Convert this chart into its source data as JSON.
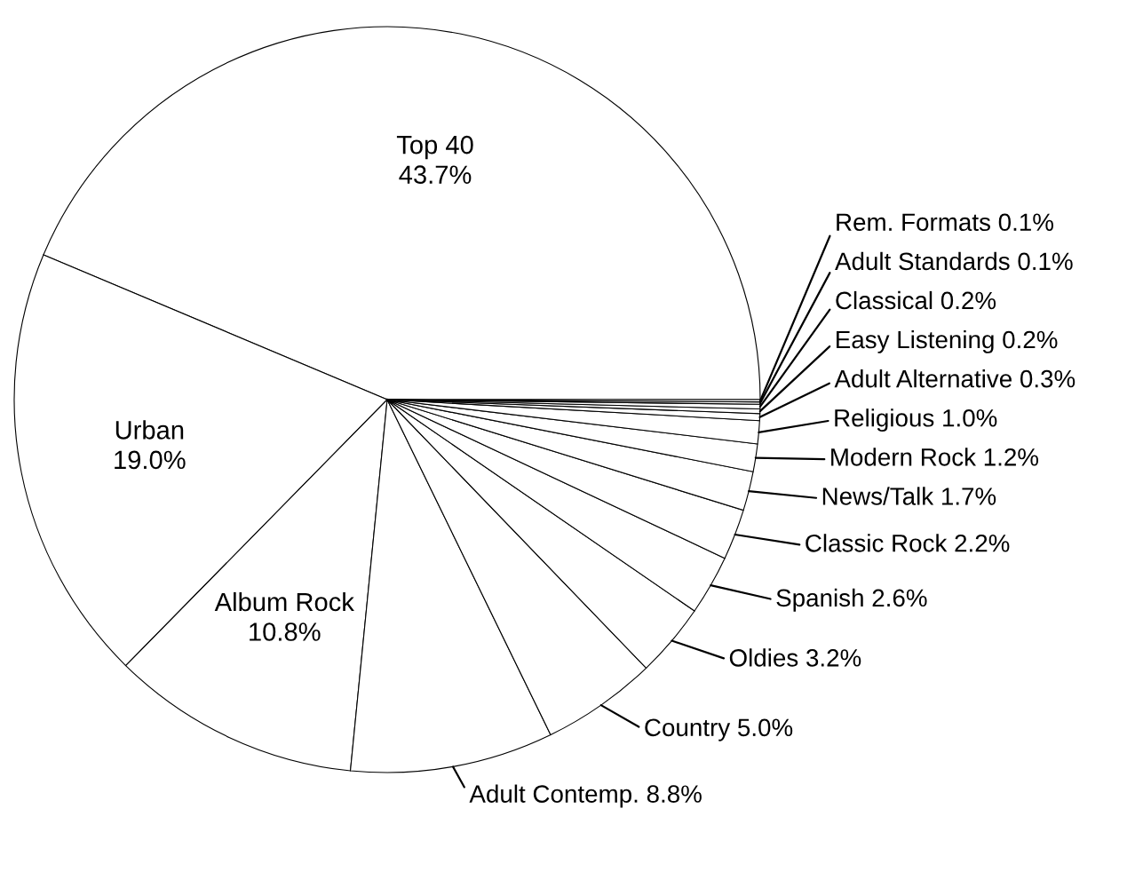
{
  "chart_data": {
    "type": "pie",
    "categories": [
      "Top 40",
      "Urban",
      "Album Rock",
      "Adult Contemp.",
      "Country",
      "Oldies",
      "Spanish",
      "Classic Rock",
      "News/Talk",
      "Modern Rock",
      "Religious",
      "Adult Alternative",
      "Easy Listening",
      "Classical",
      "Adult Standards",
      "Rem. Formats"
    ],
    "values": [
      43.7,
      19.0,
      10.8,
      8.8,
      5.0,
      3.2,
      2.6,
      2.2,
      1.7,
      1.2,
      1.0,
      0.3,
      0.2,
      0.2,
      0.1,
      0.1
    ],
    "value_labels": [
      "43.7%",
      "19.0%",
      "10.8%",
      "8.8%",
      "5.0%",
      "3.2%",
      "2.6%",
      "2.2%",
      "1.7%",
      "1.2%",
      "1.0%",
      "0.3%",
      "0.2%",
      "0.2%",
      "0.1%",
      "0.1%"
    ],
    "colors": [
      "#ffffff",
      "#ffffff",
      "#ffffff",
      "#ffffff",
      "#ffffff",
      "#ffffff",
      "#ffffff",
      "#ffffff",
      "#ffffff",
      "#ffffff",
      "#ffffff",
      "#ffffff",
      "#ffffff",
      "#ffffff",
      "#ffffff",
      "#ffffff"
    ]
  }
}
